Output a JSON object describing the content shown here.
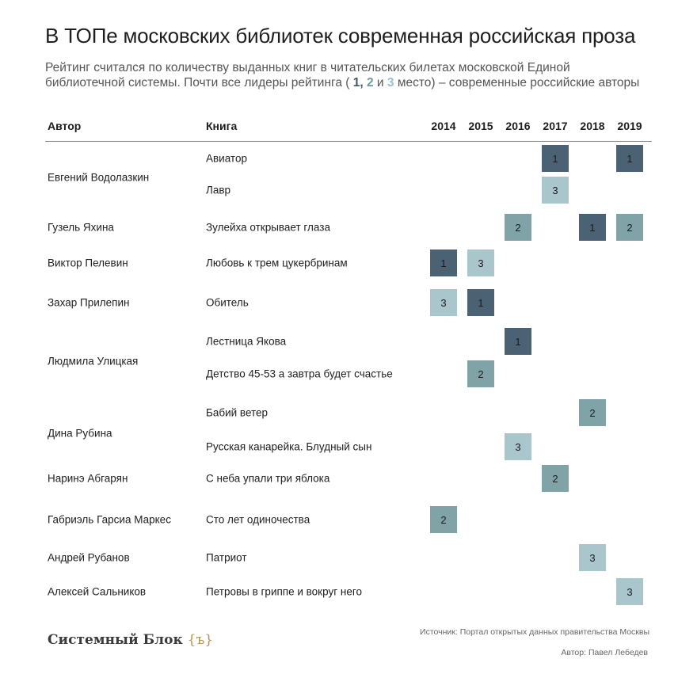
{
  "title": "В ТОПе московских библиотек современная российская проза",
  "subtitle": {
    "line1": "Рейтинг считался по количеству выданных книг в читательских билетах московской Единой",
    "line2_start": "библиотечной системы. Почти все лидеры рейтинга (",
    "p1": "1",
    "sep1": ",",
    "p2": "2",
    "and": "и",
    "p3": "3",
    "line2_end": "место) – современные российские авторы"
  },
  "headers": {
    "author": "Автор",
    "book": "Книга"
  },
  "colors": {
    "1": "#4a6274",
    "2": "#7fa3a6",
    "3": "#a9c6cc"
  },
  "chart_data": {
    "type": "table",
    "years": [
      "2014",
      "2015",
      "2016",
      "2017",
      "2018",
      "2019"
    ],
    "rows": [
      {
        "author": "Евгений Водолазкин",
        "books": [
          {
            "title": "Авиатор",
            "ranks": {
              "2017": 1,
              "2019": 1
            }
          },
          {
            "title": "Лавр",
            "ranks": {
              "2017": 3
            }
          }
        ]
      },
      {
        "author": "Гузель Яхина",
        "books": [
          {
            "title": "Зулейха открывает глаза",
            "ranks": {
              "2016": 2,
              "2018": 1,
              "2019": 2
            }
          }
        ]
      },
      {
        "author": "Виктор Пелевин",
        "books": [
          {
            "title": "Любовь к трем цукербринам",
            "ranks": {
              "2014": 1,
              "2015": 3
            }
          }
        ]
      },
      {
        "author": "Захар Прилепин",
        "books": [
          {
            "title": "Обитель",
            "ranks": {
              "2014": 3,
              "2015": 1
            }
          }
        ]
      },
      {
        "author": "Людмила Улицкая",
        "books": [
          {
            "title": "Лестница Якова",
            "ranks": {
              "2016": 1
            }
          },
          {
            "title": "Детство 45-53 а завтра будет счастье",
            "ranks": {
              "2015": 2
            }
          }
        ]
      },
      {
        "author": "Дина Рубина",
        "books": [
          {
            "title": "Бабий ветер",
            "ranks": {
              "2018": 2
            }
          },
          {
            "title": "Русская канарейка. Блудный сын",
            "ranks": {
              "2016": 3
            }
          }
        ]
      },
      {
        "author": "Наринэ Абгарян",
        "books": [
          {
            "title": "С неба упали три яблока",
            "ranks": {
              "2017": 2
            }
          }
        ]
      },
      {
        "author": "Габриэль Гарсиа Маркес",
        "books": [
          {
            "title": "Сто лет одиночества",
            "ranks": {
              "2014": 2
            }
          }
        ]
      },
      {
        "author": "Андрей Рубанов",
        "books": [
          {
            "title": "Патриот",
            "ranks": {
              "2018": 3
            }
          }
        ]
      },
      {
        "author": "Алексей Сальников",
        "books": [
          {
            "title": "Петровы в гриппе и вокруг него",
            "ranks": {
              "2019": 3
            }
          }
        ]
      }
    ]
  },
  "footer": {
    "logo_text": "Системный Блок",
    "logo_mark": "{ъ}",
    "source": "Источник: Портал открытых данных правительства Москвы",
    "credit": "Автор: Павел Лебедев"
  }
}
